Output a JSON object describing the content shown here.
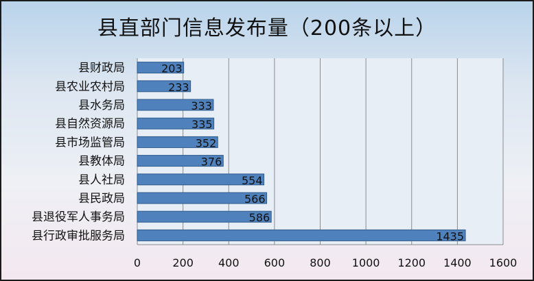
{
  "chart_data": {
    "type": "bar",
    "orientation": "horizontal",
    "title": "县直部门信息发布量（200条以上）",
    "categories": [
      "县财政局",
      "县农业农村局",
      "县水务局",
      "县自然资源局",
      "县市场监管局",
      "县教体局",
      "县人社局",
      "县民政局",
      "县退役军人事务局",
      "县行政审批服务局"
    ],
    "values": [
      203,
      233,
      333,
      335,
      352,
      376,
      554,
      566,
      586,
      1435
    ],
    "xlim": [
      0,
      1600
    ],
    "xticks": [
      "0",
      "200",
      "400",
      "600",
      "800",
      "1000",
      "1200",
      "1400",
      "1600"
    ],
    "grid": true,
    "legend": "none",
    "bar_color": "#4f81bd",
    "xlabel": "",
    "ylabel": ""
  }
}
